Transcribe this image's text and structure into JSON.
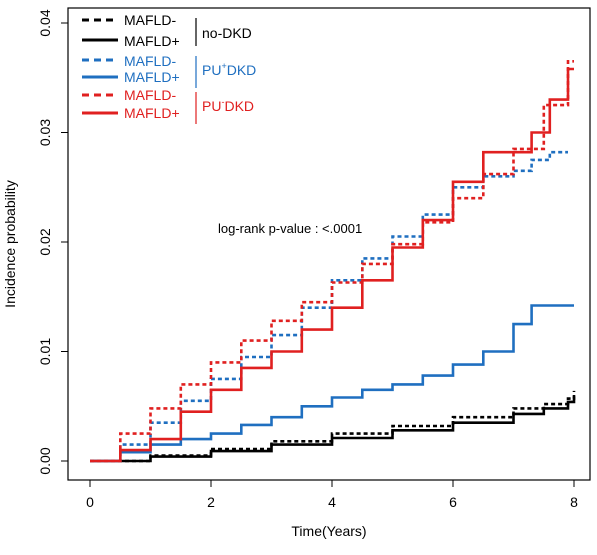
{
  "chart_data": {
    "type": "line",
    "title": "",
    "xlabel": "Time(Years)",
    "ylabel": "Incidence probability",
    "xlim": [
      0,
      8
    ],
    "ylim": [
      0,
      0.04
    ],
    "x_ticks": [
      "0",
      "2",
      "4",
      "6",
      "8"
    ],
    "y_ticks": [
      "0.00",
      "0.01",
      "0.02",
      "0.03",
      "0.04"
    ],
    "annotation": "log-rank p-value : <.0001",
    "grid": false,
    "legend_position": "top-left",
    "legend_groups": [
      {
        "group_label": "no-DKD",
        "entries": [
          "MAFLD-",
          "MAFLD+"
        ]
      },
      {
        "group_label_main": "PU",
        "group_label_sup": "+",
        "group_label_rest": "DKD",
        "entries": [
          "MAFLD-",
          "MAFLD+"
        ]
      },
      {
        "group_label_main": "PU",
        "group_label_sup": "-",
        "group_label_rest": "DKD",
        "entries": [
          "MAFLD-",
          "MAFLD+"
        ]
      }
    ],
    "series": [
      {
        "group": "no-DKD",
        "name": "MAFLD-",
        "color": "#000000",
        "dashed": true,
        "x": [
          0,
          1,
          2,
          3,
          4,
          5,
          6,
          7,
          7.5,
          7.9,
          8.0
        ],
        "y": [
          0,
          0.0005,
          0.0011,
          0.0018,
          0.0025,
          0.0032,
          0.004,
          0.0048,
          0.0052,
          0.0057,
          0.0064
        ]
      },
      {
        "group": "no-DKD",
        "name": "MAFLD+",
        "color": "#000000",
        "dashed": false,
        "x": [
          0,
          1,
          2,
          3,
          4,
          5,
          6,
          7,
          7.5,
          7.9,
          8.0
        ],
        "y": [
          0,
          0.0004,
          0.0009,
          0.0015,
          0.0021,
          0.0028,
          0.0035,
          0.0043,
          0.0048,
          0.0054,
          0.0059
        ]
      },
      {
        "group": "PU+DKD",
        "name": "MAFLD-",
        "color": "#1f6fc0",
        "dashed": true,
        "x": [
          0,
          0.5,
          1,
          1.5,
          2,
          2.5,
          3,
          3.5,
          4,
          4.5,
          5,
          5.5,
          6,
          6.5,
          7,
          7.3,
          7.6,
          7.9
        ],
        "y": [
          0,
          0.0015,
          0.0035,
          0.0055,
          0.0075,
          0.0095,
          0.0115,
          0.014,
          0.0165,
          0.0185,
          0.0205,
          0.0225,
          0.025,
          0.026,
          0.0265,
          0.0275,
          0.0282,
          0.0282
        ]
      },
      {
        "group": "PU+DKD",
        "name": "MAFLD+",
        "color": "#1f6fc0",
        "dashed": false,
        "x": [
          0,
          0.5,
          1,
          1.5,
          2,
          2.5,
          3,
          3.5,
          4,
          4.5,
          5,
          5.5,
          6,
          6.5,
          7,
          7.3,
          7.6,
          8.0
        ],
        "y": [
          0,
          0.0008,
          0.0015,
          0.002,
          0.0025,
          0.0033,
          0.004,
          0.005,
          0.0058,
          0.0065,
          0.007,
          0.0078,
          0.0088,
          0.01,
          0.0125,
          0.0142,
          0.0142,
          0.0142
        ]
      },
      {
        "group": "PU-DKD",
        "name": "MAFLD-",
        "color": "#e02020",
        "dashed": true,
        "x": [
          0,
          0.5,
          1,
          1.5,
          2,
          2.5,
          3,
          3.5,
          4,
          4.5,
          5,
          5.5,
          6,
          6.5,
          7,
          7.5,
          7.9,
          8.0
        ],
        "y": [
          0,
          0.0025,
          0.0048,
          0.007,
          0.009,
          0.011,
          0.0128,
          0.0145,
          0.0163,
          0.018,
          0.0198,
          0.0218,
          0.024,
          0.0262,
          0.0285,
          0.0325,
          0.0365,
          0.0365
        ]
      },
      {
        "group": "PU-DKD",
        "name": "MAFLD+",
        "color": "#e02020",
        "dashed": false,
        "x": [
          0,
          0.5,
          1,
          1.5,
          2,
          2.5,
          3,
          3.5,
          4,
          4.5,
          5,
          5.5,
          6,
          6.5,
          7,
          7.3,
          7.6,
          7.9,
          8.0
        ],
        "y": [
          0,
          0.001,
          0.002,
          0.0045,
          0.0065,
          0.0085,
          0.01,
          0.012,
          0.014,
          0.0165,
          0.0195,
          0.022,
          0.0255,
          0.0282,
          0.0282,
          0.03,
          0.033,
          0.0358,
          0.0358
        ]
      }
    ]
  }
}
